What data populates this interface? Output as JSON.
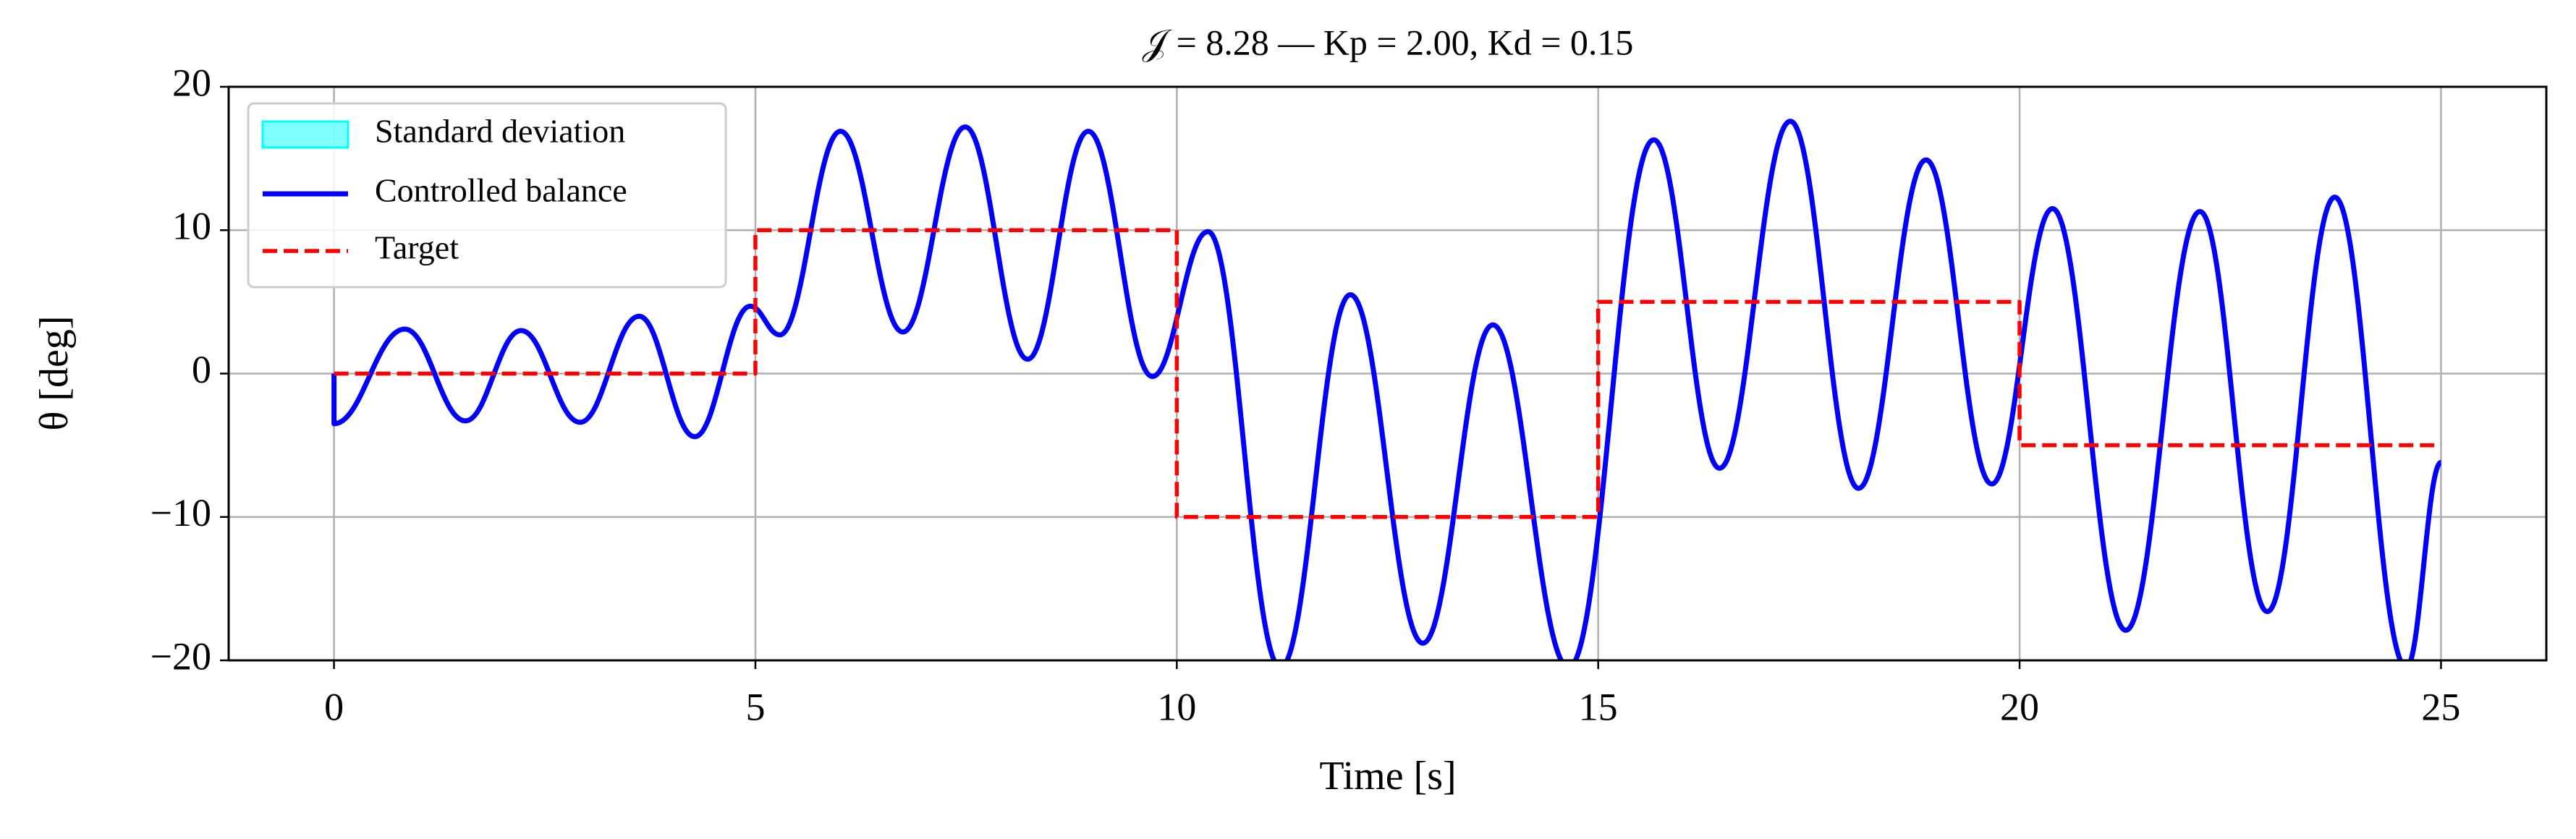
{
  "chart_data": {
    "type": "line",
    "title": "𝒥 = 8.28 — Kp = 2.00, Kd = 0.15",
    "xlabel": "Time [s]",
    "ylabel": "θ [deg]",
    "xlim": [
      -1.25,
      26.25
    ],
    "ylim": [
      -20,
      20
    ],
    "xticks": [
      0,
      5,
      10,
      15,
      20,
      25
    ],
    "yticks": [
      {
        "value": -20,
        "label": "−20"
      },
      {
        "value": -10,
        "label": "−10"
      },
      0,
      10,
      20
    ],
    "grid": true,
    "legend": "upper left",
    "band": {
      "name": "Standard deviation",
      "color": "#00ffff"
    },
    "series": [
      {
        "name": "Controlled balance",
        "color": "#0000ff",
        "style": "solid",
        "x": [
          0,
          0,
          0.84,
          1.56,
          2.22,
          2.92,
          3.62,
          4.28,
          4.94,
          5.29,
          6.01,
          6.75,
          7.49,
          8.23,
          8.95,
          9.71,
          10.37,
          11.23,
          12.06,
          12.92,
          13.75,
          14.65,
          15.66,
          16.44,
          17.28,
          18.09,
          18.89,
          19.67,
          20.39,
          21.26,
          22.14,
          22.94,
          23.74,
          24.59,
          25
        ],
        "values": [
          0,
          -3.5,
          3.1,
          -3.3,
          3.0,
          -3.4,
          4.0,
          -4.4,
          4.7,
          2.7,
          16.9,
          2.9,
          17.2,
          1.0,
          16.9,
          -0.2,
          9.9,
          -20.5,
          5.5,
          -18.8,
          3.4,
          -20.5,
          16.3,
          -6.6,
          17.6,
          -8.0,
          14.9,
          -7.7,
          11.5,
          -17.9,
          11.3,
          -16.6,
          12.3,
          -20.5,
          -6.2
        ]
      },
      {
        "name": "Target",
        "color": "#ff0000",
        "style": "dashed",
        "x": [
          0,
          5,
          5,
          10,
          10,
          15,
          15,
          20,
          20,
          25
        ],
        "values": [
          0,
          0,
          10,
          10,
          -10,
          -10,
          5,
          5,
          -5,
          -5
        ]
      }
    ]
  }
}
